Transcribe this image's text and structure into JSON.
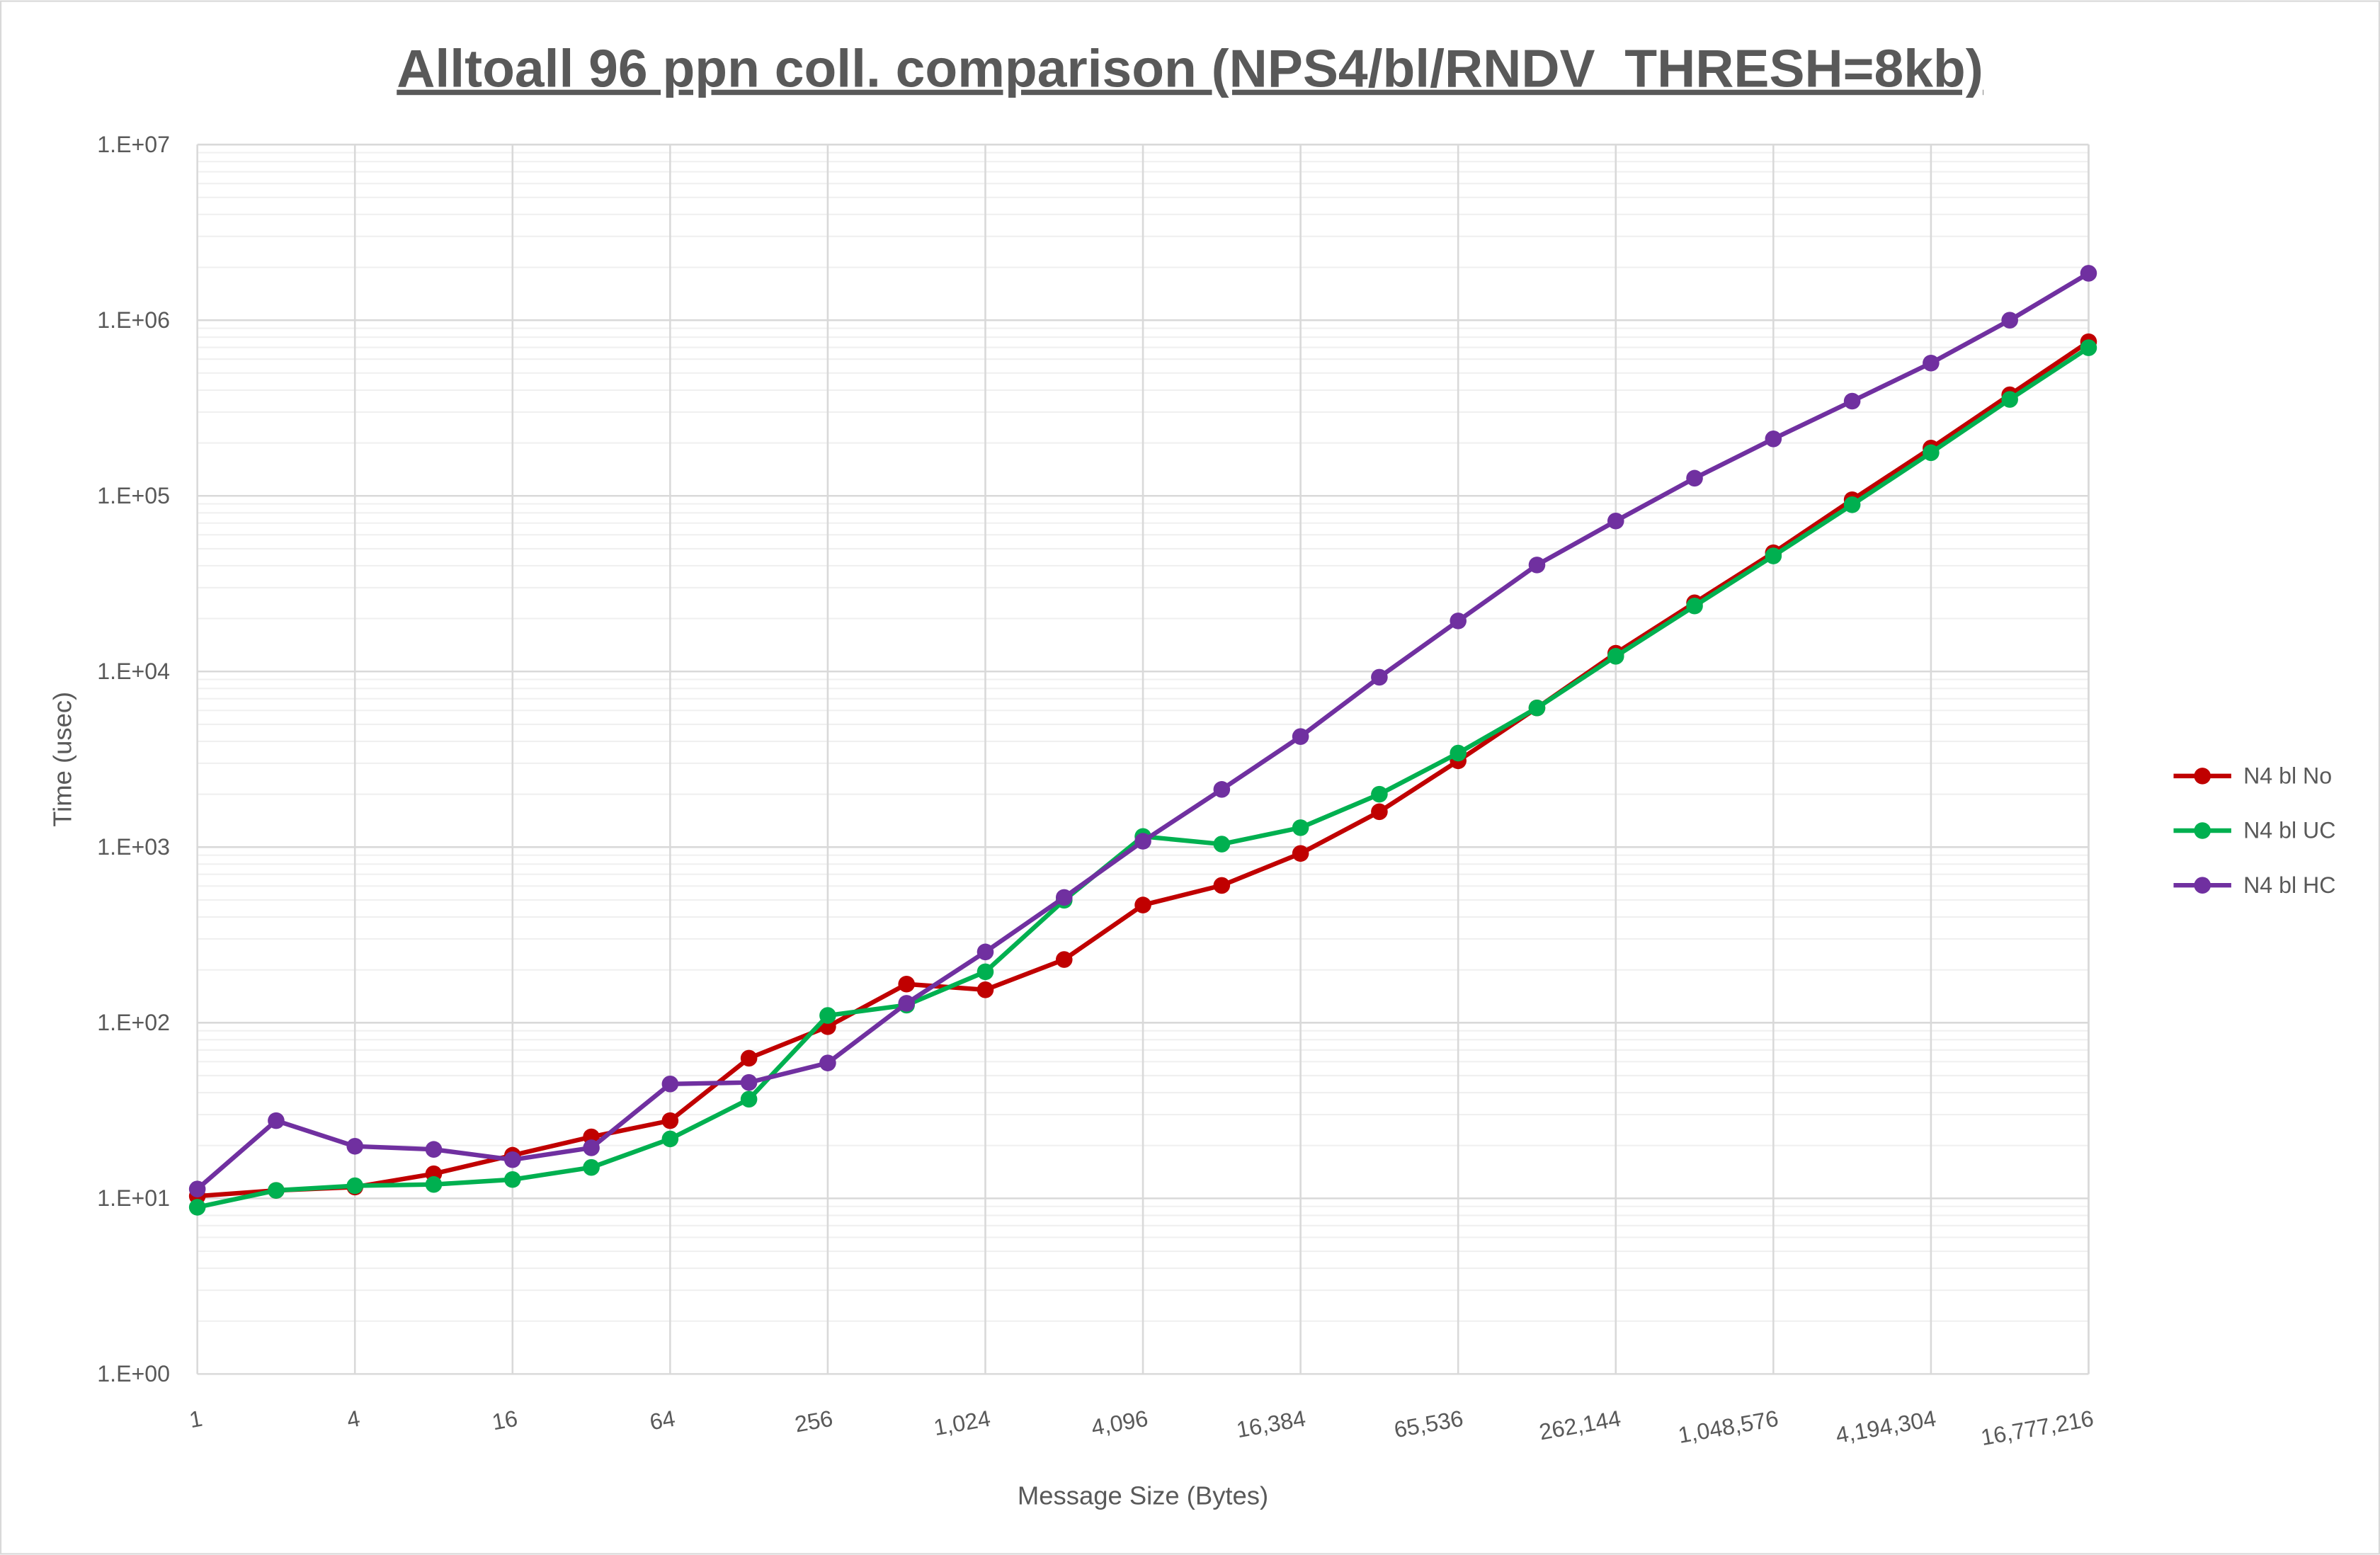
{
  "chart_data": {
    "type": "line",
    "title": "Alltoall 96 ppn coll. comparison (NPS4/bl/RNDV_THRESH=8kb)",
    "xlabel": "Message Size (Bytes)",
    "ylabel": "Time (usec)",
    "x_scale": "log2",
    "y_scale": "log10",
    "ylim": [
      1,
      10000000
    ],
    "grid": true,
    "legend_position": "right",
    "x": [
      1,
      2,
      4,
      8,
      16,
      32,
      64,
      128,
      256,
      512,
      1024,
      2048,
      4096,
      8192,
      16384,
      32768,
      65536,
      131072,
      262144,
      524288,
      1048576,
      2097152,
      4194304,
      8388608,
      16777216
    ],
    "x_tick_labels": [
      "1",
      "4",
      "16",
      "64",
      "256",
      "1,024",
      "4,096",
      "16,384",
      "65,536",
      "262,144",
      "1,048,576",
      "4,194,304",
      "16,777,216"
    ],
    "y_tick_labels": [
      "1.E+00",
      "1.E+01",
      "1.E+02",
      "1.E+03",
      "1.E+04",
      "1.E+05",
      "1.E+06",
      "1.E+07"
    ],
    "series": [
      {
        "name": "N4 bl No",
        "color": "#c00000",
        "values": [
          10.3,
          11.1,
          11.6,
          13.8,
          17.6,
          22.4,
          27.7,
          62.8,
          95,
          166,
          154,
          229,
          468,
          605,
          920,
          1590,
          3100,
          6200,
          12700,
          24600,
          47400,
          95000,
          187000,
          376000,
          754000
        ]
      },
      {
        "name": "N4 bl UC",
        "color": "#00b050",
        "values": [
          8.9,
          11.1,
          11.8,
          12.0,
          12.8,
          15.0,
          21.8,
          36.7,
          110,
          126,
          195,
          498,
          1150,
          1040,
          1290,
          2000,
          3430,
          6200,
          12200,
          23600,
          45500,
          89000,
          176000,
          354000,
          697000
        ]
      },
      {
        "name": "N4 bl HC",
        "color": "#7030a0",
        "values": [
          11.3,
          27.7,
          19.8,
          19.0,
          16.6,
          19.4,
          44.8,
          45.7,
          59,
          129,
          253,
          517,
          1080,
          2130,
          4260,
          9270,
          19400,
          40400,
          71900,
          126000,
          211000,
          346000,
          570000,
          1000000,
          1850000
        ]
      }
    ]
  }
}
